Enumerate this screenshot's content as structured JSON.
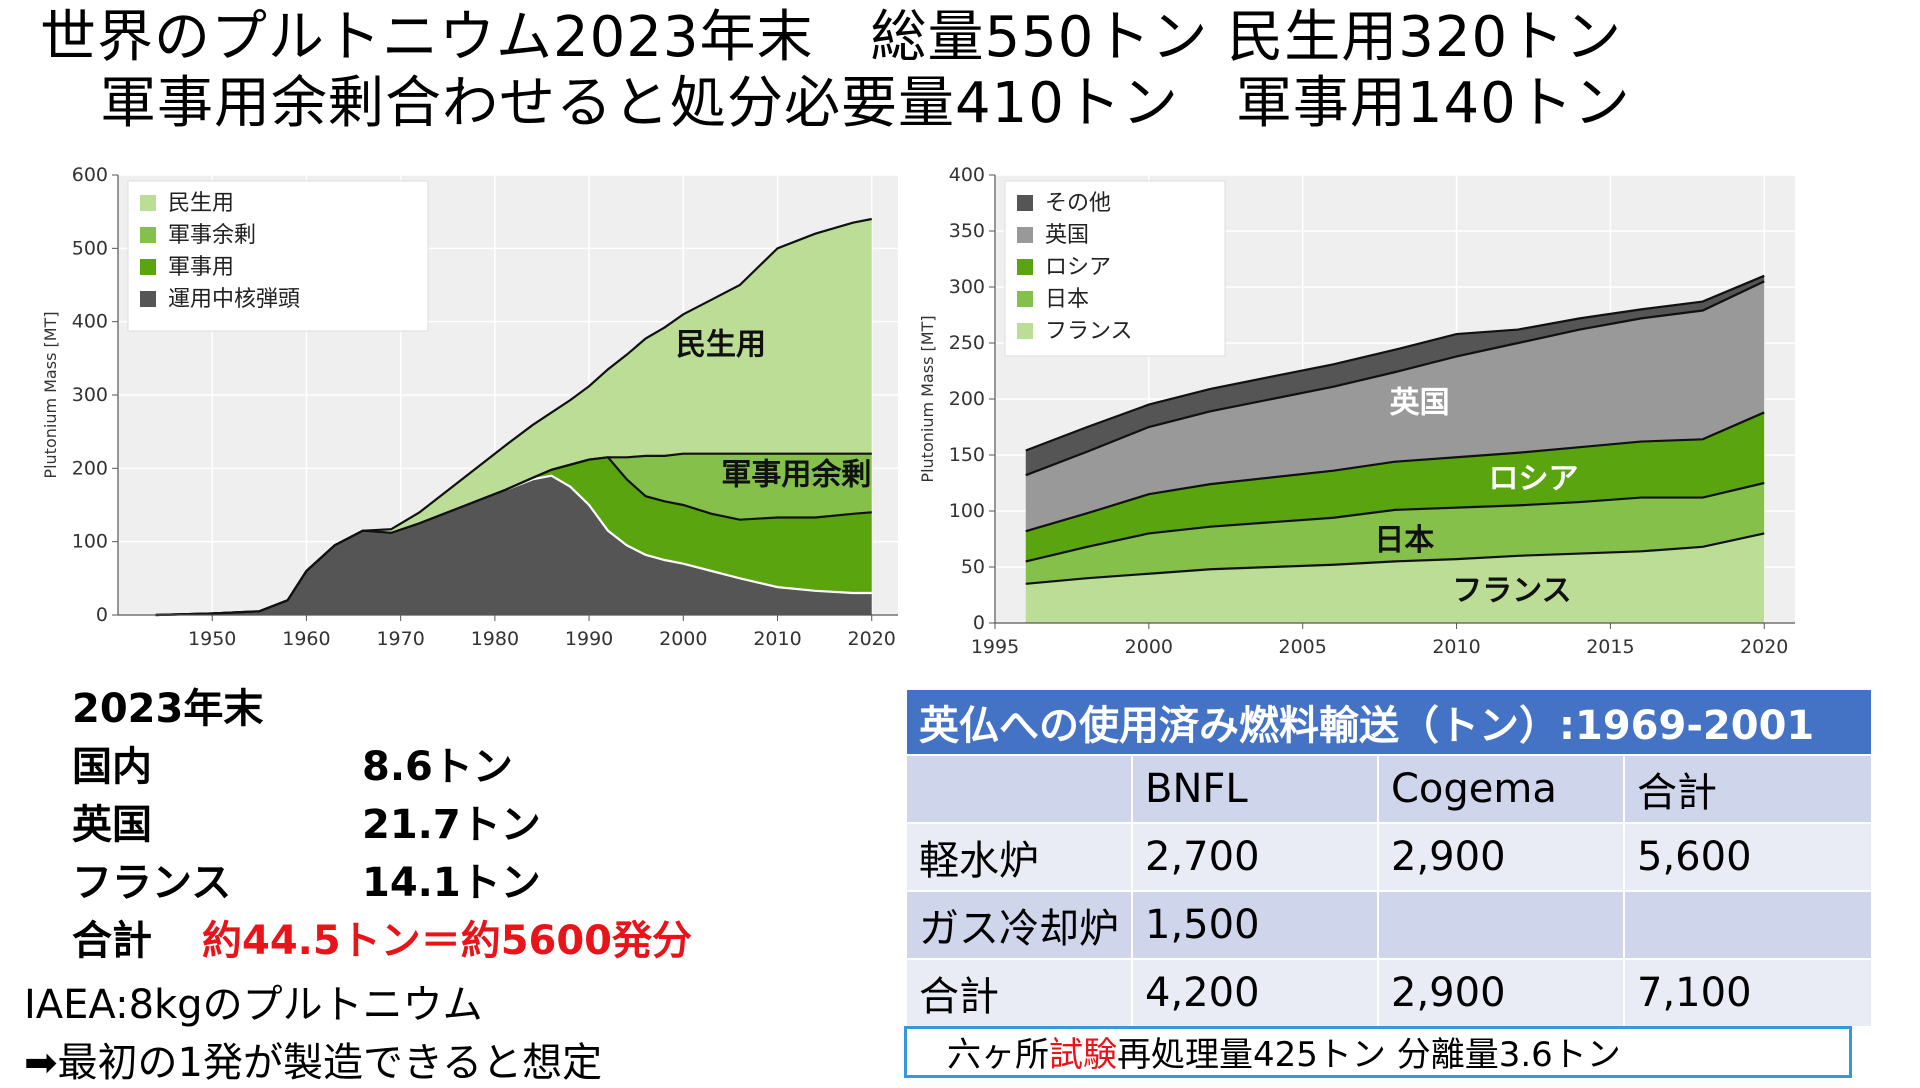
{
  "title": {
    "line1": "世界のプルトニウム2023年末　総量550トン  民生用320トン",
    "line2": "軍事用余剰合わせると処分必要量410トン　軍事用140トン"
  },
  "chart_data": [
    {
      "type": "area",
      "stacked": true,
      "ylabel": "Plutonium Mass [MT]",
      "xlabel": "",
      "xlim": [
        1940,
        2023
      ],
      "ylim": [
        0,
        600
      ],
      "x_ticks": [
        1950,
        1960,
        1970,
        1980,
        1990,
        2000,
        2010,
        2020
      ],
      "y_ticks": [
        0,
        100,
        200,
        300,
        400,
        500,
        600
      ],
      "grid": true,
      "legend_position": "top-left",
      "legend": [
        "民生用",
        "軍事余剰",
        "軍事用",
        "運用中核弾頭"
      ],
      "annotations": [
        "民生用",
        "軍事用余剰"
      ],
      "x": [
        1944,
        1950,
        1955,
        1958,
        1960,
        1963,
        1966,
        1969,
        1972,
        1975,
        1978,
        1981,
        1984,
        1986,
        1988,
        1990,
        1992,
        1994,
        1996,
        1998,
        2000,
        2003,
        2006,
        2010,
        2014,
        2018,
        2020
      ],
      "series": [
        {
          "name": "運用中核弾頭",
          "color": "#555555",
          "values": [
            0,
            2,
            5,
            20,
            60,
            95,
            115,
            112,
            125,
            140,
            155,
            170,
            185,
            190,
            175,
            150,
            115,
            95,
            82,
            75,
            70,
            60,
            50,
            38,
            33,
            30,
            30
          ]
        },
        {
          "name": "軍事用",
          "color": "#5aa50f",
          "values": [
            0,
            0,
            0,
            0,
            0,
            0,
            0,
            0,
            0,
            0,
            0,
            0,
            2,
            8,
            30,
            62,
            100,
            90,
            80,
            80,
            80,
            78,
            80,
            95,
            100,
            108,
            110
          ]
        },
        {
          "name": "軍事余剰",
          "color": "#85c04a",
          "values": [
            0,
            0,
            0,
            0,
            0,
            0,
            0,
            0,
            0,
            0,
            0,
            0,
            0,
            0,
            0,
            0,
            0,
            30,
            55,
            62,
            70,
            82,
            90,
            87,
            87,
            82,
            80
          ]
        },
        {
          "name": "民生用",
          "color": "#bcdd96",
          "values": [
            0,
            0,
            0,
            0,
            0,
            0,
            0,
            5,
            15,
            30,
            45,
            60,
            72,
            78,
            88,
            100,
            120,
            140,
            160,
            175,
            190,
            210,
            230,
            280,
            300,
            315,
            320
          ]
        }
      ]
    },
    {
      "type": "area",
      "stacked": true,
      "ylabel": "Plutonium Mass [MT]",
      "xlabel": "",
      "xlim": [
        1995,
        2021
      ],
      "ylim": [
        0,
        400
      ],
      "x_ticks": [
        1995,
        2000,
        2005,
        2010,
        2015,
        2020
      ],
      "y_ticks": [
        0,
        50,
        100,
        150,
        200,
        250,
        300,
        350,
        400
      ],
      "grid": true,
      "legend_position": "top-left",
      "legend": [
        "その他",
        "英国",
        "ロシア",
        "日本",
        "フランス"
      ],
      "annotations": [
        "英国",
        "ロシア",
        "日本",
        "フランス"
      ],
      "x": [
        1996,
        1998,
        2000,
        2002,
        2004,
        2006,
        2008,
        2010,
        2012,
        2014,
        2016,
        2018,
        2020
      ],
      "series": [
        {
          "name": "フランス",
          "color": "#bcdd96",
          "values": [
            35,
            40,
            44,
            48,
            50,
            52,
            55,
            57,
            60,
            62,
            64,
            68,
            80
          ]
        },
        {
          "name": "日本",
          "color": "#85c04a",
          "values": [
            20,
            28,
            36,
            38,
            40,
            42,
            46,
            46,
            45,
            46,
            48,
            44,
            45
          ]
        },
        {
          "name": "ロシア",
          "color": "#5aa50f",
          "values": [
            27,
            30,
            35,
            38,
            40,
            42,
            43,
            45,
            47,
            49,
            50,
            52,
            63
          ]
        },
        {
          "name": "英国",
          "color": "#999999",
          "values": [
            50,
            55,
            60,
            65,
            70,
            75,
            80,
            90,
            98,
            105,
            110,
            115,
            117
          ]
        },
        {
          "name": "その他",
          "color": "#555555",
          "values": [
            22,
            22,
            20,
            20,
            20,
            20,
            20,
            20,
            12,
            10,
            8,
            8,
            5
          ]
        }
      ]
    }
  ],
  "stats": {
    "heading": "2023年末",
    "rows": [
      {
        "label": "国内",
        "value": "8.6トン"
      },
      {
        "label": "英国",
        "value": "21.7トン"
      },
      {
        "label": "フランス",
        "value": "14.1トン"
      }
    ],
    "total_label": "合計",
    "total_value": "約44.5トン＝約5600発分",
    "total_color": "#e8141a"
  },
  "notes": {
    "line1": "IAEA:8kgのプルトニウム",
    "line2": "➡最初の1発が製造できると想定"
  },
  "table": {
    "caption": "英仏への使用済み燃料輸送（トン）:1969-2001",
    "headers": [
      "",
      "BNFL",
      "Cogema",
      "合計"
    ],
    "rows": [
      [
        "軽水炉",
        "2,700",
        "2,900",
        "5,600"
      ],
      [
        "ガス冷却炉",
        "1,500",
        "",
        ""
      ],
      [
        "合計",
        "4,200",
        "2,900",
        "7,100"
      ]
    ]
  },
  "rokkasho": {
    "prefix": "六ヶ所",
    "highlight": "試験",
    "suffix": "再処理量425トン   分離量3.6トン"
  }
}
